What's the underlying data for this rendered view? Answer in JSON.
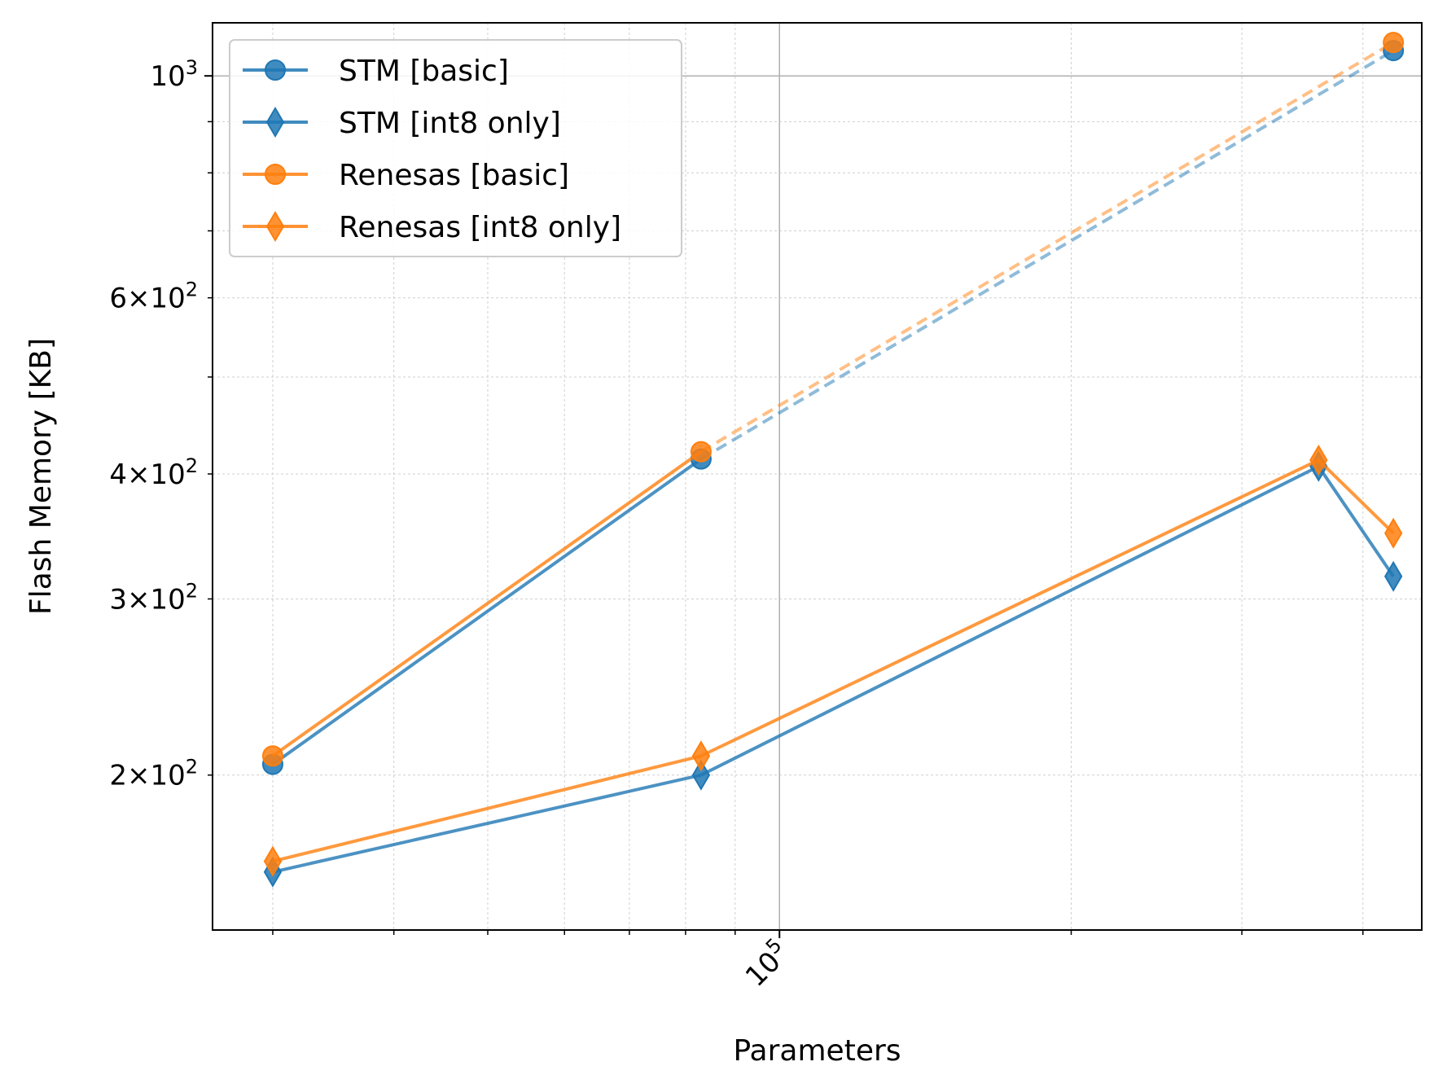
{
  "chart_data": {
    "type": "line",
    "xlabel": "Parameters",
    "ylabel": "Flash Memory [KB]",
    "xscale": "log",
    "yscale": "log",
    "xlim": [
      26000,
      460000
    ],
    "ylim": [
      140,
      1130
    ],
    "grid": true,
    "legend_position": "top-left",
    "x_tick_labels": [
      {
        "value": 100000,
        "base": "10",
        "exp": "5"
      }
    ],
    "y_tick_labels": [
      {
        "value": 200,
        "mant": "2",
        "base": "10",
        "exp": "2"
      },
      {
        "value": 300,
        "mant": "3",
        "base": "10",
        "exp": "2"
      },
      {
        "value": 400,
        "mant": "4",
        "base": "10",
        "exp": "2"
      },
      {
        "value": 600,
        "mant": "6",
        "base": "10",
        "exp": "2"
      },
      {
        "value": 1000,
        "mant": "",
        "base": "10",
        "exp": "3"
      }
    ],
    "series": [
      {
        "name": "STM [basic]",
        "color": "#1f77b4",
        "marker": "circle",
        "points": [
          [
            30000,
            205
          ],
          [
            83000,
            414
          ]
        ],
        "extrapolated": [
          [
            83000,
            414
          ],
          [
            430000,
            1060
          ]
        ]
      },
      {
        "name": "STM [int8 only]",
        "color": "#1f77b4",
        "marker": "diamond",
        "points": [
          [
            30000,
            160
          ],
          [
            83000,
            200
          ],
          [
            360000,
            407
          ],
          [
            430000,
            316
          ]
        ]
      },
      {
        "name": "Renesas [basic]",
        "color": "#ff7f0e",
        "marker": "circle",
        "points": [
          [
            30000,
            209
          ],
          [
            83000,
            421
          ]
        ],
        "extrapolated": [
          [
            83000,
            421
          ],
          [
            430000,
            1080
          ]
        ]
      },
      {
        "name": "Renesas [int8 only]",
        "color": "#ff7f0e",
        "marker": "diamond",
        "points": [
          [
            30000,
            164
          ],
          [
            83000,
            209
          ],
          [
            360000,
            413
          ],
          [
            430000,
            349
          ]
        ]
      }
    ]
  }
}
